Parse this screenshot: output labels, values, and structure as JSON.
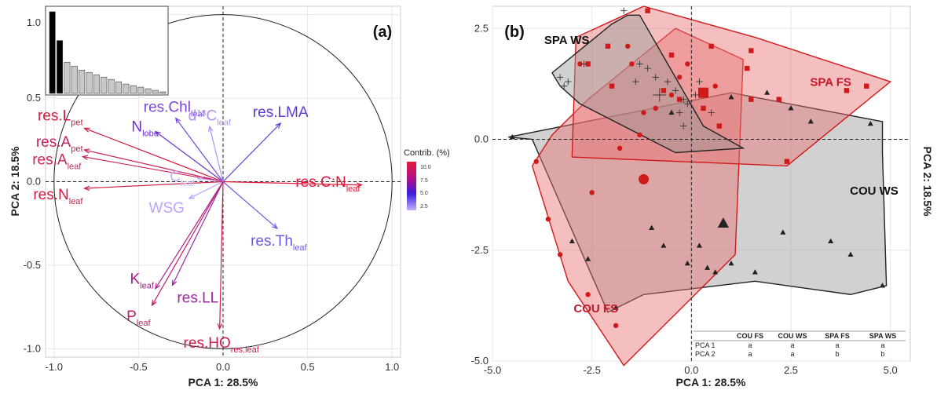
{
  "chart_data": [
    {
      "type": "scatter",
      "panel_label": "(a)",
      "xlabel": "PCA 1: 28.5%",
      "ylabel": "PCA 2: 18.5%",
      "xlim": [
        -1.05,
        1.05
      ],
      "ylim": [
        -1.05,
        1.05
      ],
      "xticks": [
        "-1.0",
        "-0.5",
        "0.0",
        "0.5",
        "1.0"
      ],
      "yticks": [
        "1.0",
        "0.5",
        "0.0",
        "-0.5",
        "-1.0"
      ],
      "grid": true,
      "legend": {
        "title": "Contrib. (%)",
        "ticks": [
          "10.0",
          "7.5",
          "5.0",
          "2.5"
        ],
        "colors": [
          "#e31a3c",
          "#c0187a",
          "#3b1adb",
          "#b9a3ff"
        ]
      },
      "variables": [
        {
          "main": "res.L",
          "sub": "pet",
          "pre": "",
          "x": -0.82,
          "y": 0.32,
          "color": "#d21a3a"
        },
        {
          "main": "N",
          "sub": "lobe",
          "pre": "",
          "x": -0.4,
          "y": 0.3,
          "color": "#6a30c8"
        },
        {
          "main": "res.Chl",
          "sub": "leaf",
          "pre": "",
          "x": -0.28,
          "y": 0.38,
          "color": "#7b46d8"
        },
        {
          "main": "C",
          "sub": "leaf",
          "pre": "d",
          "presup": "13",
          "x": -0.08,
          "y": 0.33,
          "color": "#b092f0"
        },
        {
          "main": "res.LMA",
          "sub": "",
          "pre": "",
          "x": 0.34,
          "y": 0.35,
          "color": "#5a3ad6"
        },
        {
          "main": "res.A",
          "sub": "pet",
          "pre": "",
          "x": -0.82,
          "y": 0.19,
          "color": "#c8205a"
        },
        {
          "main": "res.A",
          "sub": "leaf",
          "pre": "",
          "x": -0.83,
          "y": 0.15,
          "color": "#c8245e"
        },
        {
          "main": "C",
          "sub": "leaf",
          "pre": "",
          "x": -0.15,
          "y": 0.02,
          "color": "#c4b2ff"
        },
        {
          "main": "res.C:N",
          "sub": "leaf",
          "pre": "",
          "x": 0.82,
          "y": -0.02,
          "color": "#e0163a"
        },
        {
          "main": "res.N",
          "sub": "leaf",
          "pre": "",
          "x": -0.82,
          "y": -0.04,
          "color": "#d21a40"
        },
        {
          "main": "WSG",
          "sub": "",
          "pre": "",
          "x": -0.2,
          "y": -0.1,
          "color": "#b9a3ff"
        },
        {
          "main": "res.Th",
          "sub": "leaf",
          "pre": "",
          "x": 0.32,
          "y": -0.28,
          "color": "#6a5ae0"
        },
        {
          "main": "K",
          "sub": "leaf",
          "pre": "",
          "x": -0.4,
          "y": -0.64,
          "color": "#a82090"
        },
        {
          "main": "res.LL",
          "sub": "",
          "pre": "",
          "x": -0.3,
          "y": -0.62,
          "color": "#9a2aa0"
        },
        {
          "main": "P",
          "sub": "leaf",
          "pre": "",
          "x": -0.42,
          "y": -0.74,
          "color": "#c21a6a"
        },
        {
          "main": "res.HO",
          "sub": "res.leaf",
          "pre": "",
          "x": -0.02,
          "y": -0.88,
          "color": "#d01a48"
        }
      ],
      "inset_scree": {
        "ytick": "1.0",
        "values": [
          1.05,
          0.68,
          0.4,
          0.35,
          0.3,
          0.27,
          0.24,
          0.21,
          0.18,
          0.15,
          0.12,
          0.1,
          0.08,
          0.06,
          0.04,
          0.02
        ],
        "highlight": 2
      }
    },
    {
      "type": "scatter",
      "panel_label": "(b)",
      "xlabel": "PCA 1: 28.5%",
      "ylabel": "PCA 2: 18.5%",
      "xlim": [
        -5.0,
        5.5
      ],
      "ylim": [
        -5.0,
        3.0
      ],
      "xticks": [
        "-5.0",
        "-2.5",
        "0.0",
        "2.5",
        "5.0"
      ],
      "yticks": [
        "2.5",
        "0.0",
        "-2.5",
        "-5.0"
      ],
      "grid": true,
      "groups": [
        {
          "name": "COU WS",
          "color": "#222222",
          "fill": "#9a9a9a",
          "marker": "triangle",
          "hull": [
            [
              -4.6,
              0.05
            ],
            [
              1.0,
              1.05
            ],
            [
              4.8,
              0.4
            ],
            [
              4.8,
              -0.3
            ],
            [
              4.9,
              -3.3
            ],
            [
              4.0,
              -3.5
            ],
            [
              1.6,
              -3.2
            ],
            [
              -1.2,
              -3.5
            ],
            [
              -2.1,
              -3.9
            ],
            [
              -4.0,
              0.0
            ]
          ],
          "points": [
            [
              -4.5,
              0.05
            ],
            [
              -3.0,
              -2.3
            ],
            [
              -2.6,
              -2.7
            ],
            [
              -1.9,
              -3.8
            ],
            [
              -1.0,
              -2.0
            ],
            [
              -0.7,
              -2.4
            ],
            [
              -0.1,
              -2.8
            ],
            [
              0.2,
              -2.4
            ],
            [
              0.4,
              -2.9
            ],
            [
              0.6,
              -3.0
            ],
            [
              1.0,
              -2.8
            ],
            [
              1.6,
              -3.0
            ],
            [
              2.3,
              -2.1
            ],
            [
              3.5,
              -2.3
            ],
            [
              4.0,
              -2.6
            ],
            [
              4.8,
              -3.3
            ],
            [
              4.5,
              0.35
            ],
            [
              3.0,
              0.4
            ],
            [
              2.5,
              0.7
            ],
            [
              1.9,
              1.05
            ],
            [
              1.0,
              0.95
            ],
            [
              -0.5,
              0.6
            ]
          ],
          "centroid": [
            0.8,
            -1.9
          ]
        },
        {
          "name": "COU FS",
          "color": "#d01a1a",
          "fill": "#e87070",
          "marker": "circle",
          "hull": [
            [
              -1.7,
              -5.1
            ],
            [
              1.1,
              -2.6
            ],
            [
              1.3,
              1.8
            ],
            [
              -0.4,
              2.5
            ],
            [
              -2.6,
              0.9
            ],
            [
              -3.5,
              0.1
            ],
            [
              -4.0,
              -0.6
            ],
            [
              -3.1,
              -3.2
            ]
          ],
          "points": [
            [
              -1.9,
              -4.2
            ],
            [
              -2.6,
              -3.5
            ],
            [
              -3.3,
              -2.6
            ],
            [
              -3.6,
              -1.8
            ],
            [
              -3.9,
              -0.5
            ],
            [
              -2.5,
              -1.2
            ],
            [
              -1.8,
              -0.2
            ],
            [
              -1.3,
              0.1
            ],
            [
              -1.2,
              0.6
            ],
            [
              -0.9,
              0.7
            ],
            [
              -0.5,
              1.0
            ],
            [
              -0.3,
              1.4
            ],
            [
              -0.1,
              1.7
            ],
            [
              0.3,
              0.7
            ],
            [
              0.6,
              1.2
            ],
            [
              -1.6,
              2.1
            ],
            [
              -1.5,
              1.7
            ],
            [
              -2.8,
              1.7
            ]
          ],
          "centroid": [
            -1.2,
            -0.9
          ]
        },
        {
          "name": "SPA FS",
          "color": "#d01a1a",
          "fill": "#e87070",
          "marker": "square",
          "hull": [
            [
              -1.2,
              3.0
            ],
            [
              1.6,
              2.3
            ],
            [
              5.0,
              1.3
            ],
            [
              2.4,
              -0.6
            ],
            [
              -3.0,
              -0.4
            ],
            [
              -2.9,
              2.3
            ]
          ],
          "points": [
            [
              -1.1,
              2.9
            ],
            [
              -0.5,
              1.9
            ],
            [
              0.5,
              2.1
            ],
            [
              1.4,
              1.6
            ],
            [
              1.5,
              2.0
            ],
            [
              2.2,
              0.9
            ],
            [
              3.9,
              1.1
            ],
            [
              4.4,
              1.2
            ],
            [
              2.4,
              -0.5
            ],
            [
              1.5,
              0.9
            ],
            [
              0.7,
              0.3
            ],
            [
              0.3,
              0.7
            ],
            [
              -0.3,
              0.9
            ],
            [
              -0.7,
              1.1
            ],
            [
              -2.1,
              2.1
            ],
            [
              -2.0,
              1.2
            ],
            [
              -2.6,
              1.7
            ]
          ],
          "centroid": [
            0.3,
            1.05
          ]
        },
        {
          "name": "SPA WS",
          "color": "#222222",
          "fill": "#9a9a9a",
          "marker": "cross",
          "hull": [
            [
              -3.5,
              1.5
            ],
            [
              -2.0,
              2.6
            ],
            [
              -1.6,
              2.8
            ],
            [
              -1.3,
              2.8
            ],
            [
              0.3,
              0.3
            ],
            [
              1.3,
              -0.2
            ],
            [
              -0.4,
              -0.3
            ],
            [
              -2.8,
              0.8
            ],
            [
              -3.3,
              1.2
            ]
          ],
          "points": [
            [
              -3.3,
              1.4
            ],
            [
              -3.1,
              1.3
            ],
            [
              -3.2,
              1.2
            ],
            [
              -2.7,
              1.7
            ],
            [
              -1.7,
              2.9
            ],
            [
              -1.3,
              1.7
            ],
            [
              -1.1,
              1.6
            ],
            [
              -0.9,
              1.4
            ],
            [
              -0.6,
              1.3
            ],
            [
              -0.4,
              1.1
            ],
            [
              -0.2,
              0.9
            ],
            [
              -0.1,
              0.8
            ],
            [
              0.1,
              1.0
            ],
            [
              0.2,
              1.3
            ],
            [
              -0.3,
              0.6
            ],
            [
              -0.2,
              0.3
            ],
            [
              0.5,
              0.6
            ],
            [
              -1.4,
              1.3
            ]
          ],
          "centroid": [
            -0.8,
            1.0
          ]
        }
      ],
      "table": {
        "columns": [
          "",
          "COU FS",
          "COU WS",
          "SPA FS",
          "SPA WS"
        ],
        "header_colors": [
          "#222222",
          "#d01a1a",
          "#222222",
          "#d01a1a",
          "#222222"
        ],
        "rows": [
          [
            "PCA 1",
            "a",
            "a",
            "a",
            "a"
          ],
          [
            "PCA 2",
            "a",
            "a",
            "b",
            "b"
          ]
        ]
      }
    }
  ]
}
